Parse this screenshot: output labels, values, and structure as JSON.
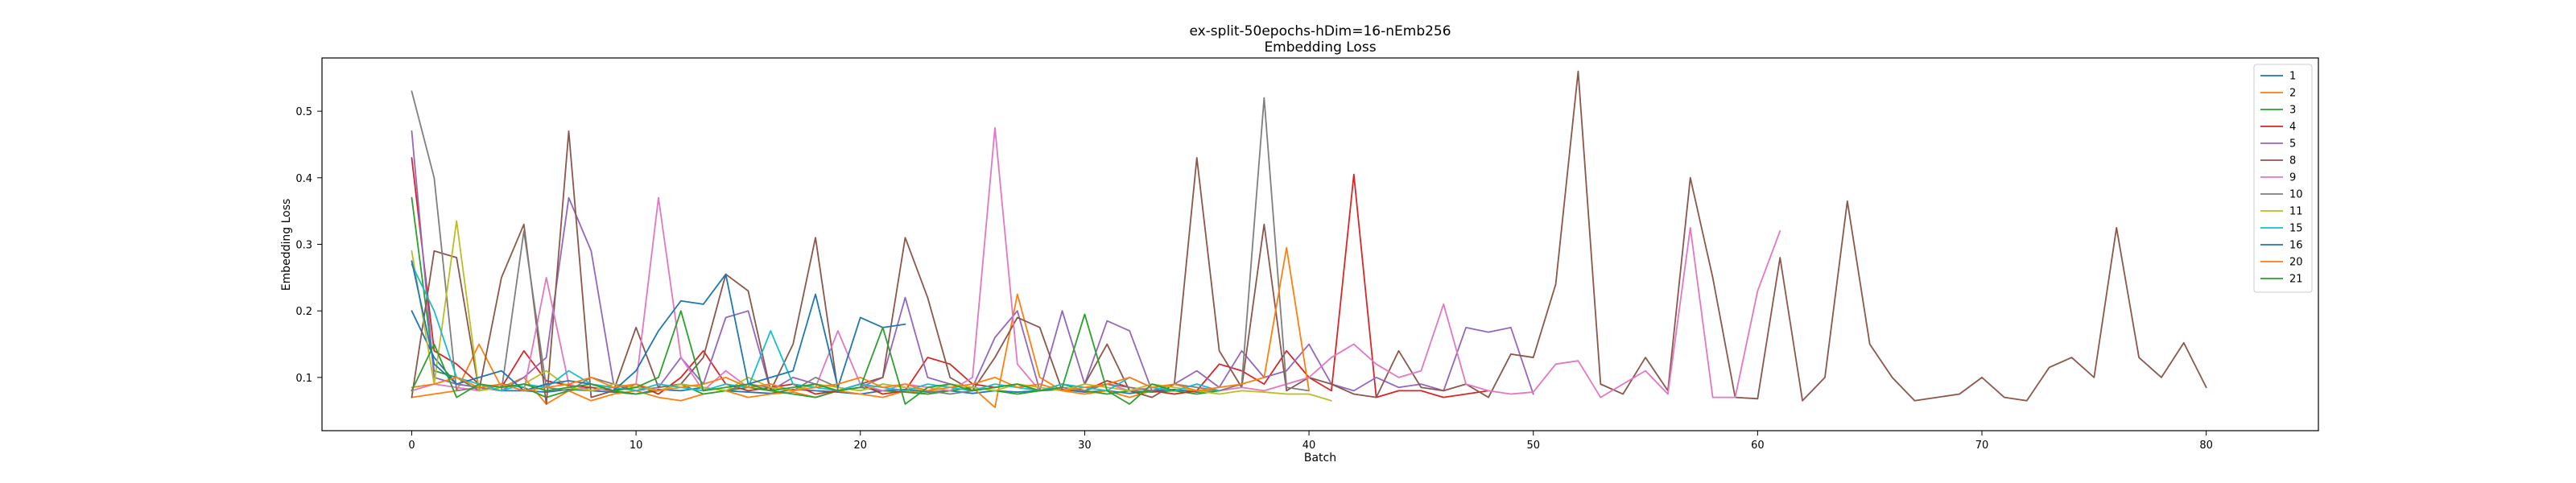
{
  "chart_data": {
    "type": "line",
    "title": "ex-split-50epochs-hDim=16-nEmb256",
    "subtitle": "Embedding Loss",
    "xlabel": "Batch",
    "ylabel": "Embedding Loss",
    "xlim": [
      -4,
      85
    ],
    "ylim": [
      0.02,
      0.58
    ],
    "xticks": [
      0,
      10,
      20,
      30,
      40,
      50,
      60,
      70,
      80
    ],
    "yticks": [
      0.1,
      0.2,
      0.3,
      0.4,
      0.5
    ],
    "ytick_labels": [
      "0.1",
      "0.2",
      "0.3",
      "0.4",
      "0.5"
    ],
    "grid": false,
    "legend_position": "top-right",
    "series": [
      {
        "name": "1",
        "color": "#1f77b4",
        "values": [
          0.2,
          0.13,
          0.09,
          0.085,
          0.08,
          0.08,
          0.078,
          0.082,
          0.08,
          0.078,
          0.075,
          0.082,
          0.08,
          0.085,
          0.08,
          0.078,
          0.076,
          0.082,
          0.08,
          0.078,
          0.075,
          0.08,
          0.082,
          0.078,
          0.08,
          0.076,
          0.08,
          0.078,
          0.08,
          0.082,
          0.078,
          0.08,
          0.076,
          0.08,
          0.082,
          0.078,
          0.08
        ]
      },
      {
        "name": "2",
        "color": "#ff7f0e",
        "values": [
          0.07,
          0.075,
          0.08,
          0.15,
          0.085,
          0.1,
          0.06,
          0.08,
          0.065,
          0.075,
          0.08,
          0.07,
          0.065,
          0.075,
          0.08,
          0.07,
          0.075,
          0.078,
          0.07,
          0.08,
          0.075,
          0.07,
          0.08,
          0.075,
          0.08,
          0.085,
          0.055,
          0.225,
          0.1,
          0.08,
          0.075,
          0.08,
          0.07,
          0.08,
          0.075,
          0.08,
          0.08
        ]
      },
      {
        "name": "3",
        "color": "#2ca02c",
        "values": [
          0.37,
          0.11,
          0.1,
          0.08,
          0.09,
          0.085,
          0.07,
          0.08,
          0.085,
          0.08,
          0.075,
          0.08,
          0.09,
          0.075,
          0.08,
          0.085,
          0.08,
          0.075,
          0.07,
          0.08,
          0.085,
          0.08,
          0.078,
          0.075,
          0.08,
          0.085,
          0.08,
          0.075,
          0.08,
          0.09,
          0.08,
          0.075,
          0.08,
          0.078,
          0.08,
          0.075,
          0.08
        ]
      },
      {
        "name": "4",
        "color": "#d62728",
        "values": [
          0.43,
          0.14,
          0.12,
          0.09,
          0.085,
          0.14,
          0.095,
          0.088,
          0.085,
          0.08,
          0.09,
          0.075,
          0.1,
          0.14,
          0.09,
          0.08,
          0.085,
          0.09,
          0.075,
          0.08,
          0.09,
          0.075,
          0.08,
          0.13,
          0.12,
          0.09,
          0.085,
          0.09,
          0.08,
          0.085,
          0.08,
          0.095,
          0.085,
          0.08,
          0.075,
          0.08,
          0.12,
          0.11,
          0.09,
          0.14,
          0.1,
          0.08,
          0.405,
          0.07,
          0.08,
          0.08,
          0.07,
          0.075,
          0.08
        ]
      },
      {
        "name": "5",
        "color": "#9467bd",
        "values": [
          0.47,
          0.1,
          0.09,
          0.085,
          0.08,
          0.1,
          0.13,
          0.37,
          0.29,
          0.09,
          0.08,
          0.085,
          0.13,
          0.09,
          0.19,
          0.2,
          0.08,
          0.1,
          0.09,
          0.08,
          0.085,
          0.1,
          0.22,
          0.1,
          0.09,
          0.085,
          0.16,
          0.2,
          0.08,
          0.2,
          0.09,
          0.185,
          0.17,
          0.08,
          0.09,
          0.11,
          0.085,
          0.14,
          0.1,
          0.11,
          0.15,
          0.09,
          0.08,
          0.1,
          0.085,
          0.09,
          0.08,
          0.175,
          0.168,
          0.175,
          0.075
        ]
      },
      {
        "name": "8",
        "color": "#8c564b",
        "values": [
          0.07,
          0.29,
          0.28,
          0.08,
          0.25,
          0.33,
          0.06,
          0.47,
          0.07,
          0.08,
          0.175,
          0.085,
          0.09,
          0.13,
          0.255,
          0.23,
          0.08,
          0.15,
          0.31,
          0.08,
          0.09,
          0.1,
          0.31,
          0.22,
          0.1,
          0.08,
          0.13,
          0.19,
          0.175,
          0.08,
          0.09,
          0.15,
          0.08,
          0.07,
          0.09,
          0.43,
          0.14,
          0.085,
          0.33,
          0.08,
          0.1,
          0.09,
          0.075,
          0.07,
          0.14,
          0.085,
          0.08,
          0.09,
          0.07,
          0.135,
          0.13,
          0.24,
          0.56,
          0.09,
          0.075,
          0.13,
          0.08,
          0.4,
          0.25,
          0.07,
          0.068,
          0.28,
          0.065,
          0.1,
          0.365,
          0.15,
          0.1,
          0.065,
          0.07,
          0.075,
          0.1,
          0.07,
          0.065,
          0.115,
          0.13,
          0.1,
          0.325,
          0.13,
          0.1,
          0.152,
          0.085
        ]
      },
      {
        "name": "9",
        "color": "#e377c2",
        "values": [
          0.08,
          0.09,
          0.085,
          0.08,
          0.09,
          0.08,
          0.25,
          0.09,
          0.08,
          0.085,
          0.09,
          0.37,
          0.13,
          0.08,
          0.11,
          0.085,
          0.09,
          0.08,
          0.085,
          0.17,
          0.09,
          0.08,
          0.09,
          0.085,
          0.08,
          0.1,
          0.475,
          0.12,
          0.08,
          0.085,
          0.08,
          0.09,
          0.08,
          0.085,
          0.08,
          0.09,
          0.08,
          0.085,
          0.08,
          0.09,
          0.1,
          0.13,
          0.15,
          0.12,
          0.1,
          0.11,
          0.21,
          0.09,
          0.08,
          0.075,
          0.078,
          0.12,
          0.125,
          0.07,
          0.09,
          0.11,
          0.075,
          0.325,
          0.07,
          0.07,
          0.23,
          0.32
        ]
      },
      {
        "name": "10",
        "color": "#7f7f7f",
        "values": [
          0.53,
          0.4,
          0.08,
          0.085,
          0.08,
          0.32,
          0.085,
          0.08,
          0.1,
          0.09,
          0.085,
          0.08,
          0.09,
          0.085,
          0.08,
          0.09,
          0.085,
          0.08,
          0.1,
          0.085,
          0.08,
          0.09,
          0.085,
          0.08,
          0.075,
          0.08,
          0.085,
          0.09,
          0.08,
          0.085,
          0.08,
          0.09,
          0.085,
          0.08,
          0.09,
          0.085,
          0.08,
          0.09,
          0.52,
          0.085,
          0.08
        ]
      },
      {
        "name": "11",
        "color": "#bcbd22",
        "values": [
          0.29,
          0.09,
          0.335,
          0.08,
          0.085,
          0.09,
          0.11,
          0.085,
          0.08,
          0.09,
          0.085,
          0.08,
          0.09,
          0.085,
          0.08,
          0.1,
          0.085,
          0.08,
          0.09,
          0.085,
          0.08,
          0.09,
          0.085,
          0.08,
          0.09,
          0.085,
          0.08,
          0.09,
          0.085,
          0.08,
          0.09,
          0.085,
          0.08,
          0.09,
          0.085,
          0.08,
          0.075,
          0.08,
          0.078,
          0.075,
          0.075,
          0.065
        ]
      },
      {
        "name": "15",
        "color": "#17becf",
        "values": [
          0.27,
          0.2,
          0.1,
          0.09,
          0.08,
          0.09,
          0.085,
          0.11,
          0.09,
          0.085,
          0.08,
          0.09,
          0.085,
          0.08,
          0.09,
          0.085,
          0.17,
          0.09,
          0.085,
          0.08,
          0.09,
          0.085,
          0.08,
          0.09,
          0.085,
          0.08,
          0.09,
          0.085,
          0.08,
          0.09,
          0.085,
          0.08,
          0.1,
          0.085,
          0.08,
          0.09,
          0.08
        ]
      },
      {
        "name": "16",
        "color": "#1f77b4",
        "values": [
          0.275,
          0.12,
          0.09,
          0.1,
          0.11,
          0.08,
          0.09,
          0.095,
          0.09,
          0.08,
          0.11,
          0.17,
          0.215,
          0.21,
          0.255,
          0.09,
          0.1,
          0.11,
          0.225,
          0.085,
          0.19,
          0.175,
          0.18
        ]
      },
      {
        "name": "20",
        "color": "#ff7f0e",
        "values": [
          0.085,
          0.09,
          0.1,
          0.085,
          0.09,
          0.08,
          0.085,
          0.09,
          0.1,
          0.085,
          0.09,
          0.08,
          0.085,
          0.09,
          0.1,
          0.085,
          0.09,
          0.08,
          0.085,
          0.09,
          0.1,
          0.085,
          0.09,
          0.08,
          0.085,
          0.09,
          0.1,
          0.085,
          0.09,
          0.08,
          0.085,
          0.09,
          0.1,
          0.085,
          0.09,
          0.08,
          0.085,
          0.09,
          0.1,
          0.295,
          0.08
        ]
      },
      {
        "name": "21",
        "color": "#2ca02c",
        "values": [
          0.08,
          0.15,
          0.07,
          0.09,
          0.085,
          0.09,
          0.08,
          0.085,
          0.09,
          0.08,
          0.085,
          0.1,
          0.2,
          0.08,
          0.085,
          0.09,
          0.08,
          0.085,
          0.09,
          0.08,
          0.085,
          0.175,
          0.06,
          0.085,
          0.09,
          0.08,
          0.085,
          0.09,
          0.08,
          0.085,
          0.195,
          0.08,
          0.06,
          0.09,
          0.08
        ]
      }
    ]
  }
}
